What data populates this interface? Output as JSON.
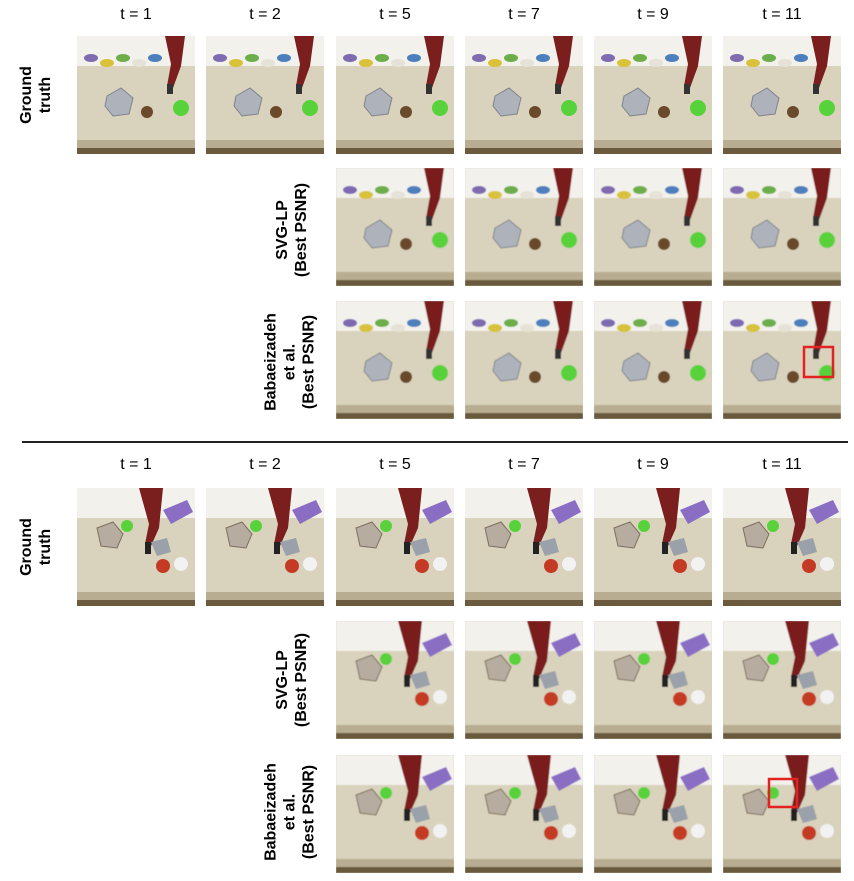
{
  "blocks": [
    {
      "time_labels": [
        "t = 1",
        "t = 2",
        "t = 5",
        "t = 7",
        "t = 9",
        "t = 11"
      ],
      "rows": [
        {
          "label_lines": [
            "Ground",
            "truth"
          ],
          "frames": 6
        },
        {
          "label_lines": [
            "SVG-LP",
            "(Best PSNR)"
          ],
          "frames": 4
        },
        {
          "label_lines": [
            "Babaeizadeh",
            "et al.",
            "(Best PSNR)"
          ],
          "frames": 4
        }
      ]
    },
    {
      "time_labels": [
        "t = 1",
        "t = 2",
        "t = 5",
        "t = 7",
        "t = 9",
        "t = 11"
      ],
      "rows": [
        {
          "label_lines": [
            "Ground",
            "truth"
          ],
          "frames": 6
        },
        {
          "label_lines": [
            "SVG-LP",
            "(Best PSNR)"
          ],
          "frames": 4
        },
        {
          "label_lines": [
            "Babaeizadeh",
            "et al.",
            "(Best PSNR)"
          ],
          "frames": 4
        }
      ]
    }
  ],
  "colors": {
    "table": "#d9d2bc",
    "wall": "#f2f1ec",
    "robot_arm": "#7a1e1e",
    "green_ball": "#58d23a",
    "highlight_box": "#e32222"
  }
}
